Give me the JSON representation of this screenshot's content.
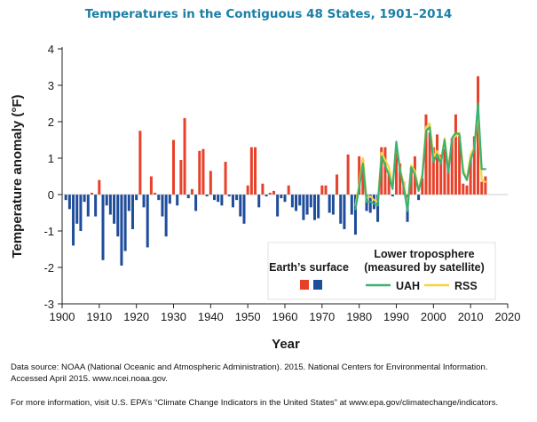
{
  "title": "Temperatures in the Contiguous 48 States, 1901–2014",
  "source_line1": "Data source: NOAA (National Oceanic and Atmospheric Administration). 2015. National Centers for Environmental Information.",
  "source_line2": "Accessed April 2015. www.ncei.noaa.gov.",
  "more_info": "For more information, visit U.S. EPA’s “Climate Change Indicators in the United States” at www.epa.gov/climatechange/indicators.",
  "colors": {
    "positive_bar": "#e8412a",
    "negative_bar": "#1f4c9b",
    "uah_line": "#3bb273",
    "rss_line": "#f7d33c",
    "title": "#1b7fa7",
    "axis_text": "#1a1a1a"
  },
  "chart_data": {
    "type": "bar",
    "title": "Temperatures in the Contiguous 48 States, 1901–2014",
    "xlabel": "Year",
    "ylabel": "Temperature anomaly (°F)",
    "xlim": [
      1900,
      2020
    ],
    "ylim": [
      -3,
      4
    ],
    "x_ticks": [
      1900,
      1910,
      1920,
      1930,
      1940,
      1950,
      1960,
      1970,
      1980,
      1990,
      2000,
      2010,
      2020
    ],
    "y_ticks": [
      -3,
      -2,
      -1,
      0,
      1,
      2,
      3,
      4
    ],
    "grid": false,
    "legend": {
      "surface_title": "Earth’s surface",
      "troposphere_title_line1": "Lower troposphere",
      "troposphere_title_line2": "(measured by satellite)",
      "placement": "bottom-right"
    },
    "series": [
      {
        "name": "Earth’s surface",
        "kind": "bar",
        "x": [
          1901,
          1902,
          1903,
          1904,
          1905,
          1906,
          1907,
          1908,
          1909,
          1910,
          1911,
          1912,
          1913,
          1914,
          1915,
          1916,
          1917,
          1918,
          1919,
          1920,
          1921,
          1922,
          1923,
          1924,
          1925,
          1926,
          1927,
          1928,
          1929,
          1930,
          1931,
          1932,
          1933,
          1934,
          1935,
          1936,
          1937,
          1938,
          1939,
          1940,
          1941,
          1942,
          1943,
          1944,
          1945,
          1946,
          1947,
          1948,
          1949,
          1950,
          1951,
          1952,
          1953,
          1954,
          1955,
          1956,
          1957,
          1958,
          1959,
          1960,
          1961,
          1962,
          1963,
          1964,
          1965,
          1966,
          1967,
          1968,
          1969,
          1970,
          1971,
          1972,
          1973,
          1974,
          1975,
          1976,
          1977,
          1978,
          1979,
          1980,
          1981,
          1982,
          1983,
          1984,
          1985,
          1986,
          1987,
          1988,
          1989,
          1990,
          1991,
          1992,
          1993,
          1994,
          1995,
          1996,
          1997,
          1998,
          1999,
          2000,
          2001,
          2002,
          2003,
          2004,
          2005,
          2006,
          2007,
          2008,
          2009,
          2010,
          2011,
          2012,
          2013,
          2014
        ],
        "values": [
          -0.15,
          -0.4,
          -1.4,
          -0.8,
          -1.0,
          -0.2,
          -0.6,
          0.05,
          -0.6,
          0.4,
          -1.8,
          -0.3,
          -0.55,
          -0.8,
          -1.15,
          -1.95,
          -1.55,
          -0.45,
          -0.95,
          -0.15,
          1.75,
          -0.35,
          -1.45,
          0.5,
          0.05,
          -0.15,
          -0.6,
          -1.15,
          -0.25,
          1.5,
          -0.3,
          0.95,
          2.1,
          -0.1,
          0.15,
          -0.45,
          1.2,
          1.25,
          -0.05,
          0.65,
          -0.15,
          -0.2,
          -0.3,
          0.9,
          -0.05,
          -0.35,
          -0.15,
          -0.6,
          -0.8,
          0.25,
          1.3,
          1.3,
          -0.35,
          0.3,
          -0.05,
          0.05,
          0.1,
          -0.6,
          -0.1,
          -0.2,
          0.25,
          -0.35,
          -0.45,
          -0.3,
          -0.7,
          -0.55,
          -0.35,
          -0.7,
          -0.65,
          0.25,
          0.25,
          -0.5,
          -0.55,
          0.55,
          -0.8,
          -0.95,
          1.1,
          -0.55,
          -1.1,
          1.05,
          0.95,
          -0.45,
          -0.5,
          -0.4,
          -0.75,
          1.3,
          1.3,
          0.55,
          -0.05,
          1.25,
          0.85,
          0.35,
          -0.75,
          0.75,
          1.05,
          -0.15,
          0.45,
          2.2,
          1.7,
          1.3,
          1.65,
          1.1,
          1.25,
          0.85,
          1.55,
          2.2,
          1.6,
          0.3,
          0.25,
          1.05,
          1.6,
          3.25,
          0.35,
          0.5
        ]
      },
      {
        "name": "UAH",
        "kind": "line",
        "x": [
          1979,
          1980,
          1981,
          1982,
          1983,
          1984,
          1985,
          1986,
          1987,
          1988,
          1989,
          1990,
          1991,
          1992,
          1993,
          1994,
          1995,
          1996,
          1997,
          1998,
          1999,
          2000,
          2001,
          2002,
          2003,
          2004,
          2005,
          2006,
          2007,
          2008,
          2009,
          2010,
          2011,
          2012,
          2013,
          2014
        ],
        "values": [
          -0.4,
          0.2,
          0.85,
          -0.2,
          -0.2,
          -0.25,
          -0.3,
          1.05,
          0.8,
          0.55,
          0.15,
          1.45,
          0.65,
          0.2,
          -0.45,
          0.75,
          0.55,
          0.1,
          0.5,
          1.75,
          1.85,
          0.9,
          1.1,
          0.85,
          1.5,
          0.6,
          1.55,
          1.7,
          1.65,
          0.6,
          0.4,
          0.95,
          1.25,
          2.5,
          0.7,
          0.7
        ]
      },
      {
        "name": "RSS",
        "kind": "line",
        "x": [
          1979,
          1980,
          1981,
          1982,
          1983,
          1984,
          1985,
          1986,
          1987,
          1988,
          1989,
          1990,
          1991,
          1992,
          1993,
          1994,
          1995,
          1996,
          1997,
          1998,
          1999,
          2000,
          2001,
          2002,
          2003,
          2004,
          2005,
          2006,
          2007,
          2008,
          2009,
          2010,
          2011,
          2012,
          2013,
          2014
        ],
        "values": [
          -0.3,
          0.3,
          1.0,
          -0.1,
          -0.05,
          -0.15,
          -0.2,
          1.15,
          0.95,
          0.75,
          0.25,
          1.4,
          0.7,
          0.3,
          -0.35,
          0.8,
          0.65,
          0.15,
          0.55,
          1.85,
          1.95,
          1.05,
          1.2,
          0.9,
          1.55,
          0.7,
          1.55,
          1.6,
          1.7,
          0.7,
          0.4,
          1.1,
          1.3,
          2.3,
          0.4,
          0.35
        ]
      }
    ]
  }
}
